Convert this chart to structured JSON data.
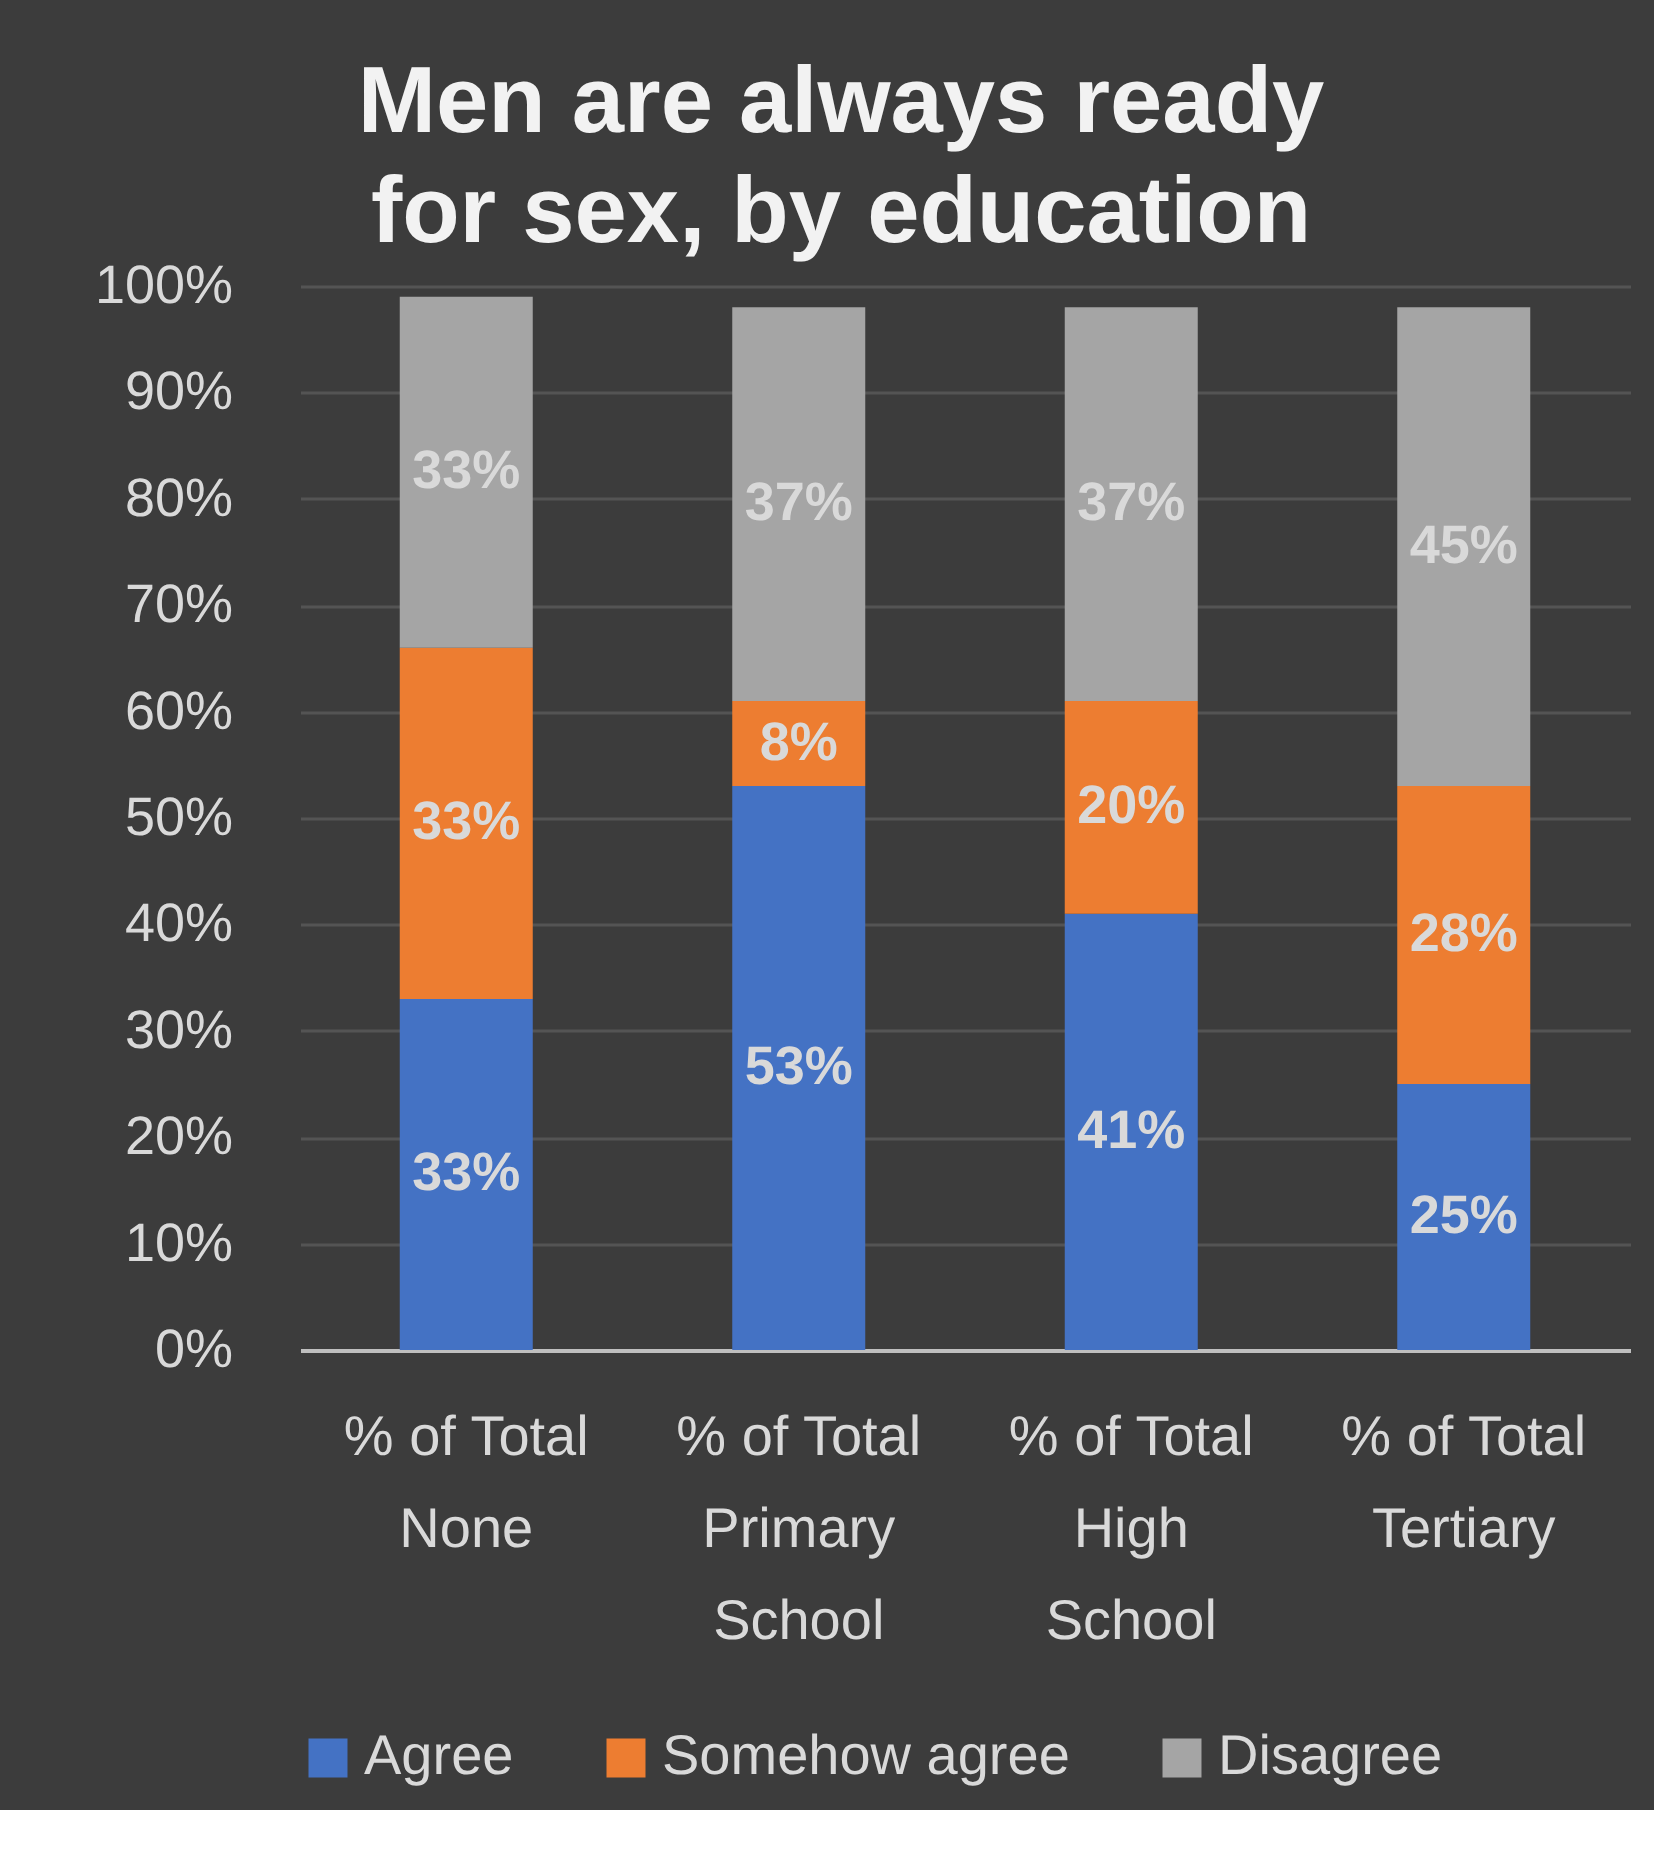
{
  "chart_data": {
    "type": "bar",
    "stacked": true,
    "title": "Men are always ready for sex, by education",
    "categories": [
      "% of Total None",
      "% of Total Primary School",
      "% of Total High School",
      "% of Total Tertiary"
    ],
    "series": [
      {
        "name": "Agree",
        "color": "#4472c4",
        "values": [
          33,
          53,
          41,
          25
        ],
        "value_labels": [
          "33%",
          "53%",
          "41%",
          "25%"
        ]
      },
      {
        "name": "Somehow agree",
        "color": "#ed7d31",
        "values": [
          33,
          8,
          20,
          28
        ],
        "value_labels": [
          "33%",
          "8%",
          "20%",
          "28%"
        ]
      },
      {
        "name": "Disagree",
        "color": "#a5a5a5",
        "values": [
          33,
          37,
          37,
          45
        ],
        "value_labels": [
          "33%",
          "37%",
          "37%",
          "45%"
        ]
      }
    ],
    "ylim": [
      0,
      100
    ],
    "yticks": [
      {
        "value": 0,
        "label": "0%"
      },
      {
        "value": 10,
        "label": "10%"
      },
      {
        "value": 20,
        "label": "20%"
      },
      {
        "value": 30,
        "label": "30%"
      },
      {
        "value": 40,
        "label": "40%"
      },
      {
        "value": 50,
        "label": "50%"
      },
      {
        "value": 60,
        "label": "60%"
      },
      {
        "value": 70,
        "label": "70%"
      },
      {
        "value": 80,
        "label": "80%"
      },
      {
        "value": 90,
        "label": "90%"
      },
      {
        "value": 100,
        "label": "100%"
      }
    ],
    "grid": "y",
    "legend": "bottom"
  }
}
